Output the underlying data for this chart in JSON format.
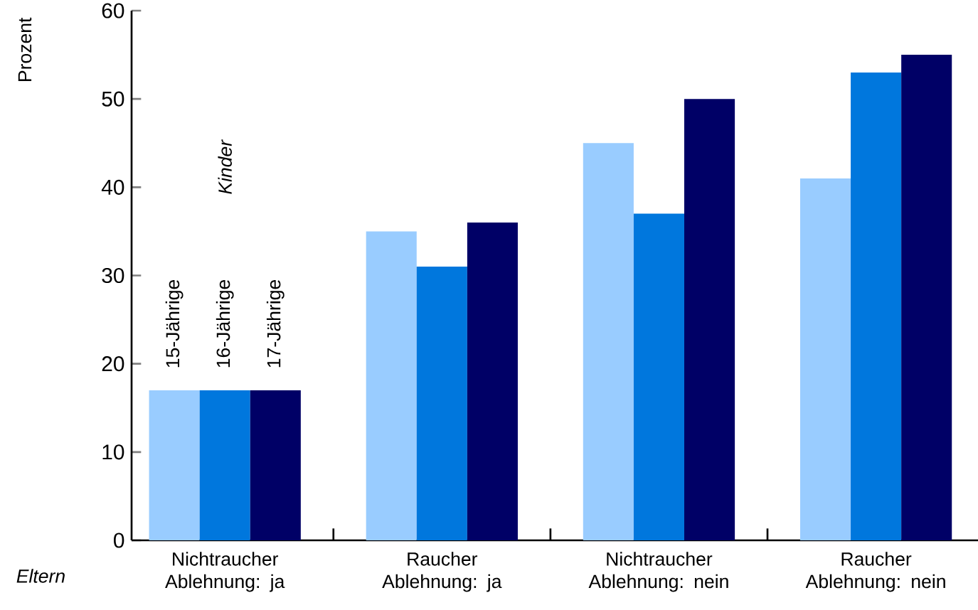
{
  "chart_data": {
    "type": "bar",
    "ylabel": "Prozent",
    "xlabel": "Eltern",
    "legend_title": "Kinder",
    "categories": [
      "Nichtraucher Ablehnung: ja",
      "Raucher Ablehnung: ja",
      "Nichtraucher Ablehnung: nein",
      "Raucher Ablehnung: nein"
    ],
    "series": [
      {
        "name": "15-Jährige",
        "color": "#99ccff",
        "values": [
          17,
          35,
          45,
          41
        ]
      },
      {
        "name": "16-Jährige",
        "color": "#0077dd",
        "values": [
          17,
          31,
          37,
          53
        ]
      },
      {
        "name": "17-Jährige",
        "color": "#000066",
        "values": [
          17,
          36,
          50,
          55
        ]
      }
    ],
    "ylim": [
      0,
      60
    ],
    "yticks": [
      0,
      10,
      20,
      30,
      40,
      50,
      60
    ],
    "legend": false,
    "grid": false
  }
}
